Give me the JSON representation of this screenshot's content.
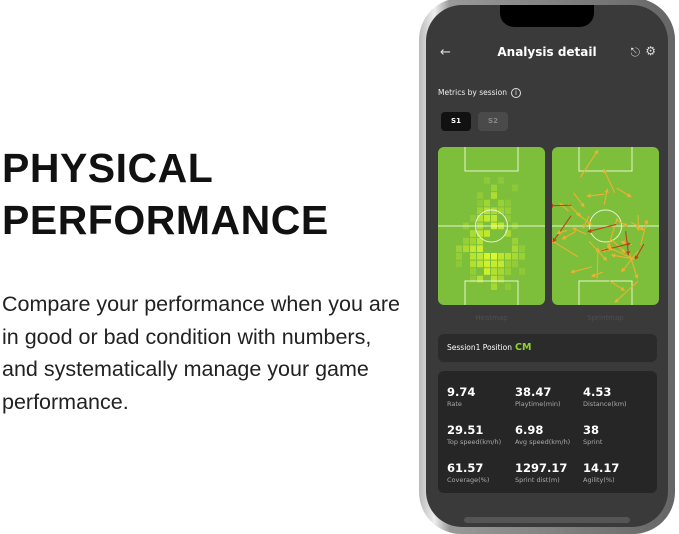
{
  "headline": [
    "PHYSICAL",
    "PERFORMANCE"
  ],
  "description": "Compare your performance when you are in good or bad condition with numbers, and systematically manage your game performance.",
  "app": {
    "title": "Analysis detail",
    "back_icon": "arrow-left-icon",
    "share_icon": "share-icon",
    "settings_icon": "gear-icon",
    "section_label": "Metrics by session",
    "sessions": [
      {
        "label": "S1",
        "selected": true
      },
      {
        "label": "S2",
        "selected": false
      }
    ],
    "maps": [
      {
        "label": "Heatmap"
      },
      {
        "label": "Sprintmap"
      }
    ],
    "position_label": "Session1 Position",
    "position_value": "CM",
    "stats": [
      {
        "value": "9.74",
        "label": "Rate"
      },
      {
        "value": "38.47",
        "label": "Playtime(min)"
      },
      {
        "value": "4.53",
        "label": "Distance(km)"
      },
      {
        "value": "29.51",
        "label": "Top speed(km/h)"
      },
      {
        "value": "6.98",
        "label": "Avg speed(km/h)"
      },
      {
        "value": "38",
        "label": "Sprint"
      },
      {
        "value": "61.57",
        "label": "Coverage(%)"
      },
      {
        "value": "1297.17",
        "label": "Sprint dist(m)"
      },
      {
        "value": "14.17",
        "label": "Agility(%)"
      }
    ],
    "colors": {
      "accent": "#8fd32c",
      "pitch": "#7dbf3a",
      "background": "#3a3a3a"
    }
  }
}
